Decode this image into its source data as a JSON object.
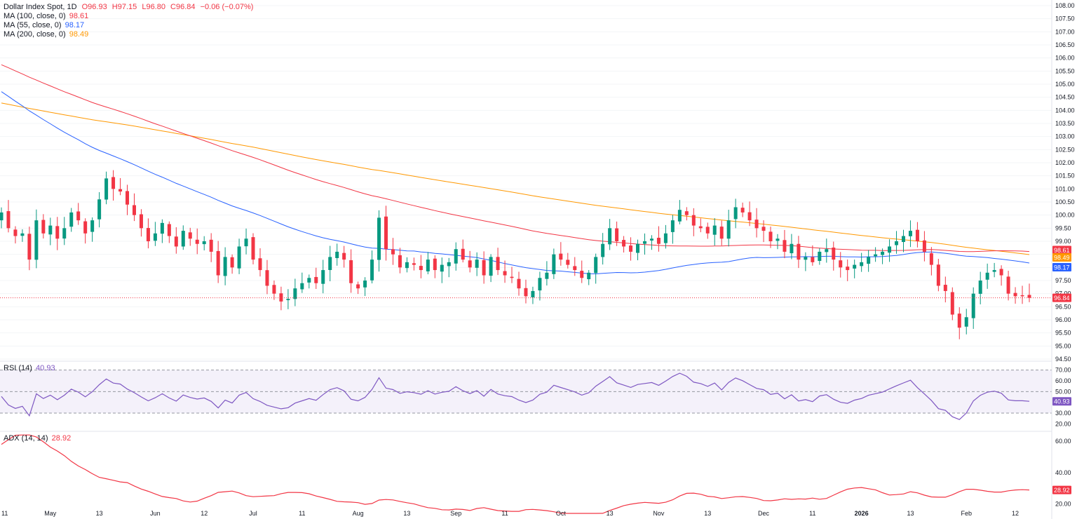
{
  "header": {
    "symbol": "Dollar Index Spot, 1D",
    "open": "O96.93",
    "high": "H97.15",
    "low": "L96.80",
    "close": "C96.84",
    "change": "−0.06 (−0.07%)"
  },
  "legend": {
    "ma100": {
      "label": "MA (100, close, 0)",
      "value": "98.61",
      "color": "#f23645"
    },
    "ma55": {
      "label": "MA (55, close, 0)",
      "value": "98.17",
      "color": "#2962ff"
    },
    "ma200": {
      "label": "MA (200, close, 0)",
      "value": "98.49",
      "color": "#ff9800"
    },
    "rsi": {
      "label": "RSI (14)",
      "value": "40.93",
      "color": "#7e57c2"
    },
    "adx": {
      "label": "ADX (14, 14)",
      "value": "28.92",
      "color": "#f23645"
    }
  },
  "colors": {
    "up": "#089981",
    "down": "#f23645",
    "last": "#f23645",
    "rsi_band": "#ede7f6"
  },
  "chart_data": {
    "type": "candlestick",
    "price_axis": {
      "min": 94.5,
      "max": 108.0,
      "ticks": [
        "94.50",
        "95.00",
        "95.50",
        "96.00",
        "96.50",
        "97.00",
        "97.50",
        "98.00",
        "98.50",
        "99.00",
        "99.50",
        "100.00",
        "100.50",
        "101.00",
        "101.50",
        "102.00",
        "102.50",
        "103.00",
        "103.50",
        "104.00",
        "104.50",
        "105.00",
        "105.50",
        "106.00",
        "106.50",
        "107.00",
        "107.50",
        "108.00"
      ]
    },
    "last_price": "96.84",
    "x_labels": [
      "11",
      "May",
      "13",
      "Jun",
      "12",
      "Jul",
      "11",
      "Aug",
      "13",
      "Sep",
      "11",
      "Oct",
      "13",
      "Nov",
      "13",
      "Dec",
      "11",
      "2026",
      "13",
      "Feb",
      "12"
    ],
    "closes": [
      100.1,
      99.5,
      99.2,
      99.3,
      98.3,
      99.8,
      99.3,
      99.6,
      99.1,
      99.5,
      100.1,
      99.8,
      99.3,
      99.8,
      100.6,
      101.4,
      101.0,
      100.9,
      100.4,
      100.0,
      99.5,
      99.0,
      99.3,
      99.7,
      99.2,
      98.8,
      99.4,
      99.1,
      98.9,
      99.0,
      98.6,
      97.7,
      98.4,
      98.0,
      98.8,
      99.1,
      98.3,
      97.9,
      97.3,
      97.0,
      96.7,
      96.8,
      97.2,
      97.4,
      97.6,
      97.4,
      97.9,
      98.4,
      98.6,
      98.3,
      97.4,
      97.2,
      97.5,
      98.3,
      99.9,
      98.7,
      98.5,
      98.0,
      98.2,
      98.1,
      97.9,
      98.3,
      97.9,
      98.1,
      98.2,
      98.7,
      98.3,
      98.0,
      98.3,
      97.7,
      98.4,
      97.9,
      97.7,
      97.6,
      97.2,
      96.9,
      97.1,
      97.6,
      97.8,
      98.5,
      98.3,
      98.1,
      97.9,
      97.6,
      97.8,
      98.4,
      98.9,
      99.5,
      99.0,
      98.8,
      98.6,
      98.9,
      99.0,
      99.1,
      98.9,
      99.3,
      99.8,
      100.2,
      100.0,
      99.6,
      99.5,
      99.3,
      99.6,
      99.1,
      99.8,
      100.3,
      100.1,
      99.8,
      99.5,
      99.4,
      99.0,
      99.1,
      98.6,
      98.9,
      98.3,
      98.4,
      98.2,
      98.6,
      98.7,
      98.3,
      98.0,
      97.9,
      98.1,
      98.2,
      98.4,
      98.5,
      98.6,
      98.8,
      99.0,
      99.2,
      99.4,
      99.0,
      98.6,
      98.1,
      97.3,
      97.1,
      96.2,
      95.7,
      96.1,
      97.0,
      97.5,
      97.8,
      97.9,
      97.7,
      97.0,
      96.9,
      96.9,
      96.84
    ],
    "ma100_last": 98.61,
    "ma55_last": 98.17,
    "ma200_last": 98.49,
    "rsi_axis": {
      "ticks": [
        "20.00",
        "30.00",
        "40.00",
        "50.00",
        "60.00",
        "70.00"
      ],
      "upper": 70,
      "middle": 50,
      "lower": 30
    },
    "rsi_last": "40.93",
    "adx_axis": {
      "ticks": [
        "20.00",
        "40.00",
        "60.00"
      ]
    },
    "adx_last": "28.92"
  }
}
